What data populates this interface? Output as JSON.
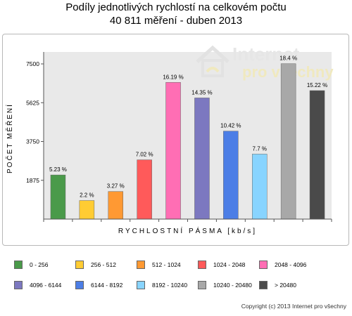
{
  "title_line1": "Podíly jednotlivých rychlostí na celkovém počtu",
  "title_line2": "40 811 měření - duben 2013",
  "watermark": {
    "line1": "Internet",
    "line2": "pro všechny"
  },
  "copyright": "Copyright (c) 2013 Internet pro všechny",
  "colors": {
    "plot_background": "#e9e9e9",
    "axis": "#555555"
  },
  "chart_data": {
    "type": "bar",
    "title": "Podíly jednotlivých rychlostí na celkovém počtu 40 811 měření - duben 2013",
    "xlabel": "RYCHLOSTNÍ PÁSMA [kb/s]",
    "ylabel": "POČET MĚŘENÍ",
    "ylim": [
      0,
      7500
    ],
    "yticks": [
      1875,
      3750,
      5625,
      7500
    ],
    "ytick_labels": [
      "1875",
      "3750",
      "5625",
      "7500"
    ],
    "grid": false,
    "legend_position": "bottom",
    "categories": [
      "0 - 256",
      "256 - 512",
      "512 - 1024",
      "1024 - 2048",
      "2048 - 4096",
      "4096 - 6144",
      "6144 - 8192",
      "8192 - 10240",
      "10240 - 20480",
      "> 20480"
    ],
    "values": [
      2134,
      898,
      1335,
      2865,
      6607,
      5856,
      4253,
      3142,
      7509,
      6211
    ],
    "data_labels": [
      "5.23 %",
      "2.2 %",
      "3.27 %",
      "7.02 %",
      "16.19 %",
      "14.35 %",
      "10.42 %",
      "7.7 %",
      "18.4 %",
      "15.22 %"
    ],
    "colors": [
      "#4a9a4a",
      "#ffcc33",
      "#ff9933",
      "#ff5a5a",
      "#ff6eb4",
      "#7c78c0",
      "#4c7ee6",
      "#88d4ff",
      "#a8a8a8",
      "#4a4a4a"
    ]
  }
}
